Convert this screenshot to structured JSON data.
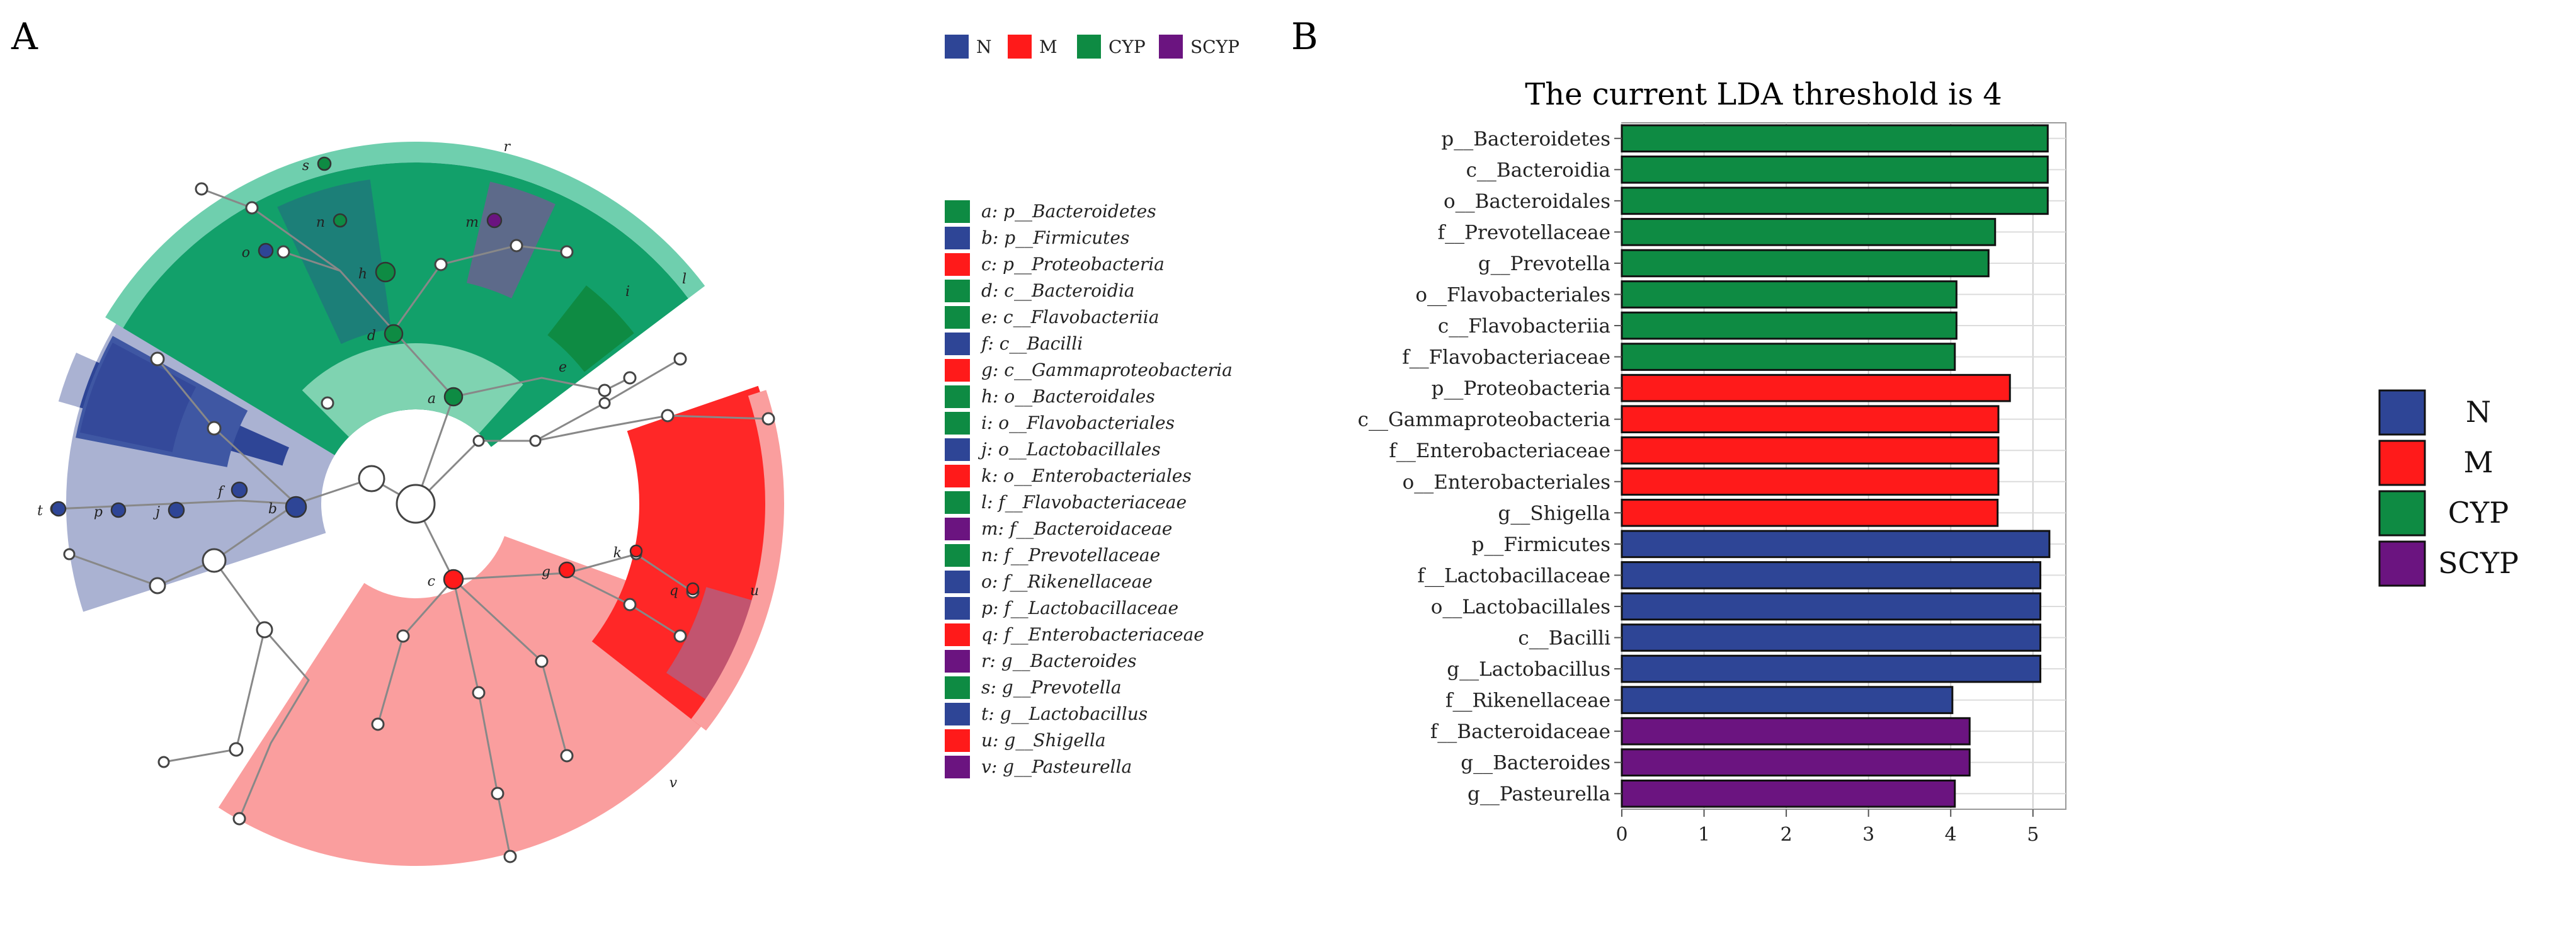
{
  "colors": {
    "N": "#2e4596",
    "M": "#ff1a1a",
    "CYP": "#0e8b43",
    "SCYP": "#6b1480"
  },
  "panel_a": {
    "label": "A",
    "top_legend": [
      {
        "name": "N",
        "color": "#2e4596"
      },
      {
        "name": "M",
        "color": "#ff1a1a"
      },
      {
        "name": "CYP",
        "color": "#0e8b43"
      },
      {
        "name": "SCYP",
        "color": "#6b1480"
      }
    ],
    "taxa_legend": [
      {
        "key": "a",
        "text": "a: p__Bacteroidetes",
        "group": "CYP"
      },
      {
        "key": "b",
        "text": "b: p__Firmicutes",
        "group": "N"
      },
      {
        "key": "c",
        "text": "c: p__Proteobacteria",
        "group": "M"
      },
      {
        "key": "d",
        "text": "d: c__Bacteroidia",
        "group": "CYP"
      },
      {
        "key": "e",
        "text": "e: c__Flavobacteriia",
        "group": "CYP"
      },
      {
        "key": "f",
        "text": "f: c__Bacilli",
        "group": "N"
      },
      {
        "key": "g",
        "text": "g: c__Gammaproteobacteria",
        "group": "M"
      },
      {
        "key": "h",
        "text": "h: o__Bacteroidales",
        "group": "CYP"
      },
      {
        "key": "i",
        "text": "i: o__Flavobacteriales",
        "group": "CYP"
      },
      {
        "key": "j",
        "text": "j: o__Lactobacillales",
        "group": "N"
      },
      {
        "key": "k",
        "text": "k: o__Enterobacteriales",
        "group": "M"
      },
      {
        "key": "l",
        "text": "l: f__Flavobacteriaceae",
        "group": "CYP"
      },
      {
        "key": "m",
        "text": "m: f__Bacteroidaceae",
        "group": "SCYP"
      },
      {
        "key": "n",
        "text": "n: f__Prevotellaceae",
        "group": "CYP"
      },
      {
        "key": "o",
        "text": "o: f__Rikenellaceae",
        "group": "N"
      },
      {
        "key": "p",
        "text": "p: f__Lactobacillaceae",
        "group": "N"
      },
      {
        "key": "q",
        "text": "q: f__Enterobacteriaceae",
        "group": "M"
      },
      {
        "key": "r",
        "text": "r: g__Bacteroides",
        "group": "SCYP"
      },
      {
        "key": "s",
        "text": "s: g__Prevotella",
        "group": "CYP"
      },
      {
        "key": "t",
        "text": "t: g__Lactobacillus",
        "group": "N"
      },
      {
        "key": "u",
        "text": "u: g__Shigella",
        "group": "M"
      },
      {
        "key": "v",
        "text": "v: g__Pasteurella",
        "group": "SCYP"
      }
    ]
  },
  "panel_b": {
    "label": "B"
  },
  "chart_data": {
    "type": "bar",
    "orientation": "horizontal",
    "title": "The current LDA threshold is 4",
    "xlabel": "",
    "ylabel": "",
    "xlim": [
      0,
      5.4
    ],
    "xticks": [
      0,
      1,
      2,
      3,
      4,
      5
    ],
    "grid": true,
    "legend_position": "right",
    "legend": [
      {
        "name": "N",
        "color": "#2e4596"
      },
      {
        "name": "M",
        "color": "#ff1a1a"
      },
      {
        "name": "CYP",
        "color": "#0e8b43"
      },
      {
        "name": "SCYP",
        "color": "#6b1480"
      }
    ],
    "categories": [
      "p__Bacteroidetes",
      "c__Bacteroidia",
      "o__Bacteroidales",
      "f__Prevotellaceae",
      "g__Prevotella",
      "o__Flavobacteriales",
      "c__Flavobacteriia",
      "f__Flavobacteriaceae",
      "p__Proteobacteria",
      "c__Gammaproteobacteria",
      "f__Enterobacteriaceae",
      "o__Enterobacteriales",
      "g__Shigella",
      "p__Firmicutes",
      "f__Lactobacillaceae",
      "o__Lactobacillales",
      "c__Bacilli",
      "g__Lactobacillus",
      "f__Rikenellaceae",
      "f__Bacteroidaceae",
      "g__Bacteroides",
      "g__Pasteurella"
    ],
    "values": [
      5.18,
      5.18,
      5.18,
      4.54,
      4.46,
      4.07,
      4.07,
      4.05,
      4.72,
      4.58,
      4.58,
      4.58,
      4.57,
      5.2,
      5.09,
      5.09,
      5.09,
      5.09,
      4.02,
      4.23,
      4.23,
      4.05
    ],
    "groups": [
      "CYP",
      "CYP",
      "CYP",
      "CYP",
      "CYP",
      "CYP",
      "CYP",
      "CYP",
      "M",
      "M",
      "M",
      "M",
      "M",
      "N",
      "N",
      "N",
      "N",
      "N",
      "N",
      "SCYP",
      "SCYP",
      "SCYP"
    ]
  }
}
